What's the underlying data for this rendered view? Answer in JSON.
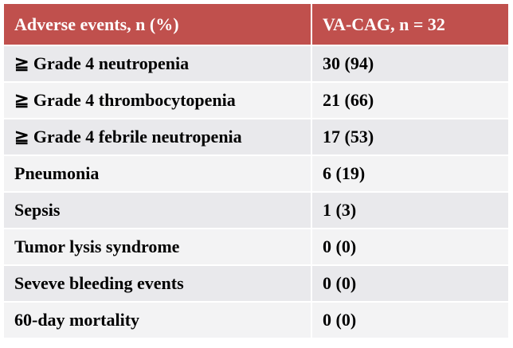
{
  "table": {
    "header": [
      "Adverse events, n (%)",
      "VA-CAG, n = 32"
    ],
    "rows": [
      [
        "≧ Grade 4 neutropenia",
        "30 (94)"
      ],
      [
        "≧ Grade 4 thrombocytopenia",
        "21 (66)"
      ],
      [
        "≧ Grade 4 febrile  neutropenia",
        "17 (53)"
      ],
      [
        "Pneumonia",
        "6 (19)"
      ],
      [
        "Sepsis",
        "1 (3)"
      ],
      [
        "Tumor lysis  syndrome",
        "0 (0)"
      ],
      [
        "Seveve bleeding  events",
        "0 (0)"
      ],
      [
        "60-day mortality",
        "0 (0)"
      ]
    ]
  }
}
